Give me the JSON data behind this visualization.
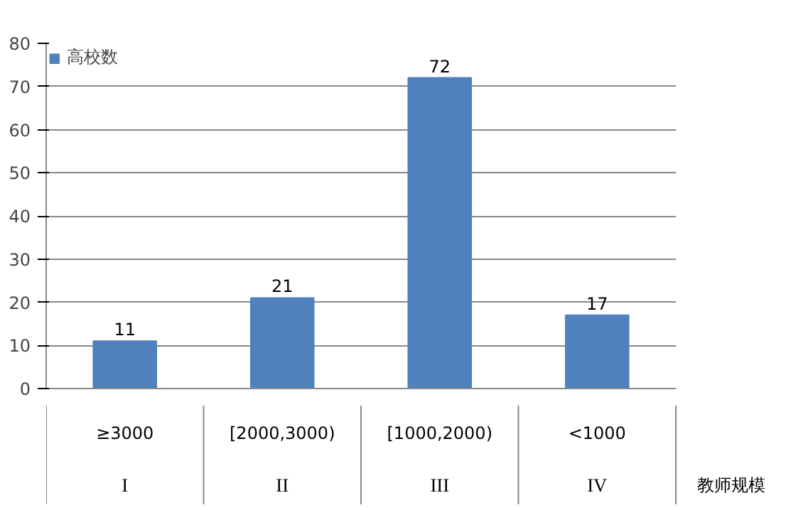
{
  "chart_data": {
    "type": "bar",
    "xlabel": "教师规模",
    "categories": [
      "≥3000",
      "[2000,3000)",
      "[1000,2000)",
      "<1000"
    ],
    "series": [
      {
        "name": "高校数",
        "color": "#4f81bd",
        "values": [
          11,
          21,
          72,
          17
        ]
      }
    ],
    "annotations": [
      "I",
      "II",
      "III",
      "IV"
    ],
    "ylim": [
      0,
      80
    ],
    "yticks": [
      0,
      10,
      20,
      30,
      40,
      50,
      60,
      70,
      80
    ],
    "grid": "y",
    "legend": "top left",
    "data_labels": true
  }
}
